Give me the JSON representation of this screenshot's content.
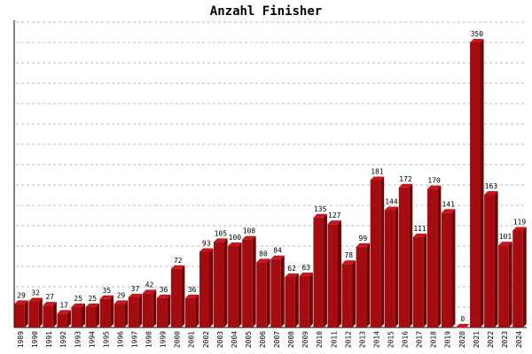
{
  "chart_data": {
    "type": "bar",
    "title": "Anzahl Finisher",
    "xlabel": "",
    "ylabel": "",
    "ylim": [
      0,
      375
    ],
    "grid": true,
    "bar_color": "#a50c10",
    "bar_top_color": "#c8161c",
    "bar_side_color": "#6e0508",
    "categories": [
      "1989",
      "1990",
      "1991",
      "1992",
      "1993",
      "1994",
      "1995",
      "1996",
      "1997",
      "1998",
      "1999",
      "2000",
      "2001",
      "2002",
      "2003",
      "2004",
      "2005",
      "2006",
      "2007",
      "2008",
      "2009",
      "2010",
      "2011",
      "2012",
      "2013",
      "2014",
      "2015",
      "2016",
      "2017",
      "2018",
      "2019",
      "2020",
      "2021",
      "2022",
      "2023",
      "2024"
    ],
    "values": [
      29,
      32,
      27,
      17,
      25,
      25,
      35,
      29,
      37,
      42,
      36,
      72,
      36,
      93,
      105,
      100,
      108,
      80,
      84,
      62,
      63,
      135,
      127,
      78,
      99,
      181,
      144,
      172,
      111,
      170,
      141,
      0,
      350,
      163,
      101,
      119
    ]
  }
}
